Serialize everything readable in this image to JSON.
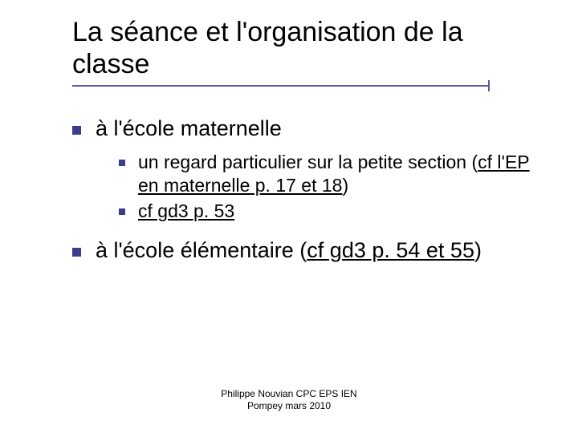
{
  "colors": {
    "background": "#ffffff",
    "text": "#000000",
    "bullet": "#3c3c8c",
    "rule": "#5a5aa0"
  },
  "typography": {
    "title_font": "Verdana",
    "title_size_pt": 34,
    "body_font": "Verdana",
    "l1_size_pt": 27,
    "l2_size_pt": 23,
    "footer_font": "Arial",
    "footer_size_pt": 12
  },
  "title": "La séance et l'organisation de la classe",
  "items": [
    {
      "text": "à l'école maternelle",
      "children": [
        {
          "parts": [
            {
              "t": "un regard particulier sur la petite section ("
            },
            {
              "t": "cf l'EP en maternelle p. 17 et 18",
              "underline": true
            },
            {
              "t": ")"
            }
          ]
        },
        {
          "parts": [
            {
              "t": "cf gd3 p. 53",
              "underline": true
            }
          ]
        }
      ]
    },
    {
      "parts": [
        {
          "t": "à l'école élémentaire ("
        },
        {
          "t": "cf gd3 p. 54 et 55",
          "underline": true
        },
        {
          "t": ")"
        }
      ]
    }
  ],
  "footer_line1": "Philippe Nouvian CPC EPS IEN",
  "footer_line2": "Pompey mars 2010"
}
